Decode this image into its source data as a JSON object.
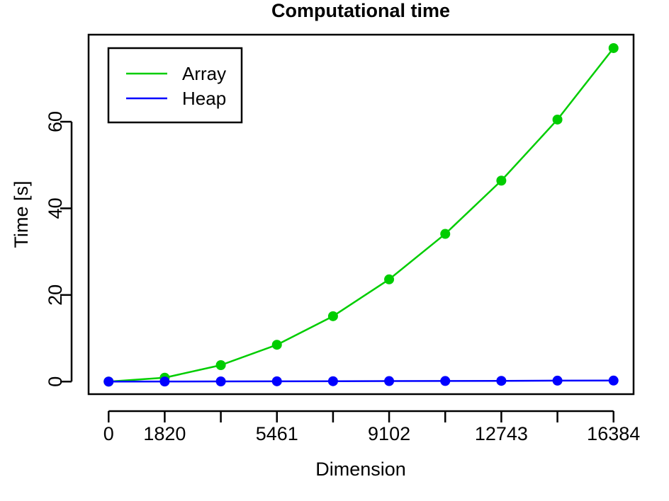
{
  "chart_data": {
    "type": "line",
    "title": "Computational time",
    "xlabel": "Dimension",
    "ylabel": "Time [s]",
    "x": [
      0,
      1820,
      3641,
      5461,
      7282,
      9102,
      10923,
      12743,
      14564,
      16384
    ],
    "x_ticks": [
      0,
      1820,
      3641,
      5461,
      7282,
      9102,
      10923,
      12743,
      14564,
      16384
    ],
    "x_tick_labels": [
      "0",
      "1820",
      "",
      "5461",
      "",
      "9102",
      "",
      "12743",
      "",
      "16384"
    ],
    "y_ticks": [
      0,
      20,
      40,
      60
    ],
    "y_tick_labels": [
      "0",
      "20",
      "40",
      "60"
    ],
    "xlim": [
      -650,
      17034
    ],
    "ylim": [
      -2.9,
      80.1
    ],
    "grid": false,
    "legend_position": "top-left",
    "series": [
      {
        "name": "Array",
        "color": "#00cd00",
        "values": [
          0.0,
          0.9,
          3.8,
          8.5,
          15.1,
          23.6,
          34.1,
          46.4,
          60.5,
          77.0
        ]
      },
      {
        "name": "Heap",
        "color": "#0000ff",
        "values": [
          0.0,
          0.02,
          0.04,
          0.07,
          0.09,
          0.12,
          0.14,
          0.17,
          0.22,
          0.24
        ]
      }
    ]
  }
}
